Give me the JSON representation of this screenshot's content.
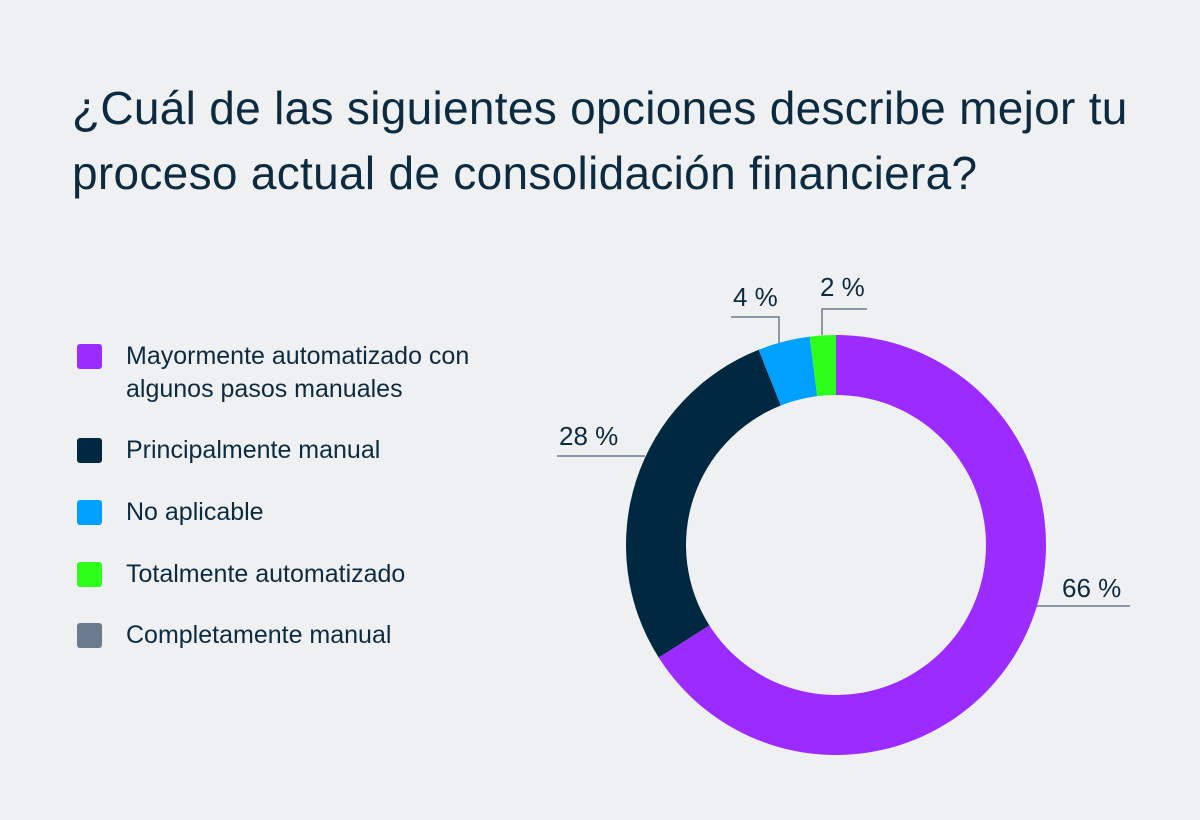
{
  "chart_data": {
    "type": "pie",
    "donut": true,
    "title": "¿Cuál de las siguientes opciones describe mejor tu proceso actual de consolidación financiera?",
    "categories": [
      "Mayormente automatizado con algunos pasos manuales",
      "Principalmente manual",
      "No aplicable",
      "Totalmente automatizado",
      "Completamente manual"
    ],
    "values": [
      66,
      28,
      4,
      2,
      0
    ],
    "labels": [
      "66 %",
      "28 %",
      "4 %",
      "2 %",
      ""
    ],
    "colors": [
      "#9b2bff",
      "#002840",
      "#00a0ff",
      "#2dff1a",
      "#6b7a8c"
    ],
    "legend_position": "left"
  }
}
